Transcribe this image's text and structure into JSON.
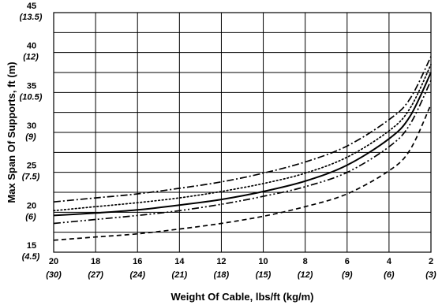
{
  "chart_data": {
    "type": "line",
    "xlabel": "Weight Of Cable, lbs/ft (kg/m)",
    "ylabel": "Max Span Of Supports, ft (m)",
    "x_ticks": [
      {
        "value": 20,
        "label": "20",
        "sub": "(30)"
      },
      {
        "value": 18,
        "label": "18",
        "sub": "(27)"
      },
      {
        "value": 16,
        "label": "16",
        "sub": "(24)"
      },
      {
        "value": 14,
        "label": "14",
        "sub": "(21)"
      },
      {
        "value": 12,
        "label": "12",
        "sub": "(18)"
      },
      {
        "value": 10,
        "label": "10",
        "sub": "(15)"
      },
      {
        "value": 8,
        "label": "8",
        "sub": "(12)"
      },
      {
        "value": 6,
        "label": "6",
        "sub": "(9)"
      },
      {
        "value": 4,
        "label": "4",
        "sub": "(6)"
      },
      {
        "value": 2,
        "label": "2",
        "sub": "(3)"
      }
    ],
    "y_ticks": [
      {
        "value": 45,
        "label": "45",
        "sub": "(13.5)"
      },
      {
        "value": 40,
        "label": "40",
        "sub": "(12)"
      },
      {
        "value": 35,
        "label": "35",
        "sub": "(10.5)"
      },
      {
        "value": 30,
        "label": "30",
        "sub": "(9)"
      },
      {
        "value": 25,
        "label": "25",
        "sub": "(7.5)"
      },
      {
        "value": 20,
        "label": "20",
        "sub": "(6)"
      },
      {
        "value": 15,
        "label": "15",
        "sub": "(4.5)"
      }
    ],
    "xlim": [
      20,
      2
    ],
    "ylim": [
      15,
      45
    ],
    "grid": true,
    "series": [
      {
        "style": "dash-dot",
        "x": [
          20,
          18,
          16,
          14,
          12,
          10,
          8,
          6,
          4,
          3,
          2
        ],
        "y": [
          21.3,
          21.8,
          22.3,
          23.0,
          23.8,
          24.9,
          26.3,
          28.3,
          31.6,
          34.2,
          39.5
        ]
      },
      {
        "style": "dotted",
        "x": [
          20,
          18,
          16,
          14,
          12,
          10,
          8,
          6,
          4,
          3,
          2
        ],
        "y": [
          20.2,
          20.7,
          21.2,
          21.8,
          22.6,
          23.6,
          24.9,
          26.9,
          30.2,
          33.0,
          38.5
        ]
      },
      {
        "style": "solid",
        "x": [
          20,
          18,
          16,
          14,
          12,
          10,
          8,
          6,
          4,
          3,
          2
        ],
        "y": [
          19.6,
          19.9,
          20.3,
          20.9,
          21.6,
          22.6,
          23.9,
          25.9,
          29.2,
          32.0,
          37.5
        ]
      },
      {
        "style": "dash-dot-dot",
        "x": [
          20,
          18,
          16,
          14,
          12,
          10,
          8,
          6,
          4,
          3,
          2
        ],
        "y": [
          18.6,
          19.1,
          19.6,
          20.2,
          21.0,
          22.0,
          23.2,
          25.0,
          28.2,
          31.0,
          36.5
        ]
      },
      {
        "style": "dashed",
        "x": [
          20,
          18,
          16,
          14,
          12,
          10,
          8,
          6,
          4,
          3,
          2
        ],
        "y": [
          16.5,
          16.9,
          17.3,
          17.9,
          18.6,
          19.5,
          20.7,
          22.3,
          25.2,
          27.8,
          33.5
        ]
      }
    ]
  }
}
